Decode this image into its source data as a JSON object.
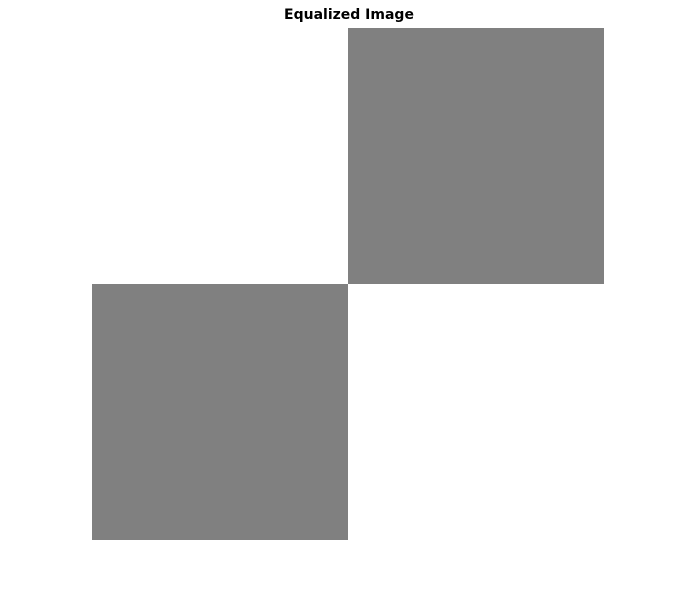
{
  "figure": {
    "title": "Equalized Image"
  },
  "image": {
    "grid": [
      [
        "#ffffff",
        "#808080"
      ],
      [
        "#808080",
        "#ffffff"
      ]
    ]
  }
}
